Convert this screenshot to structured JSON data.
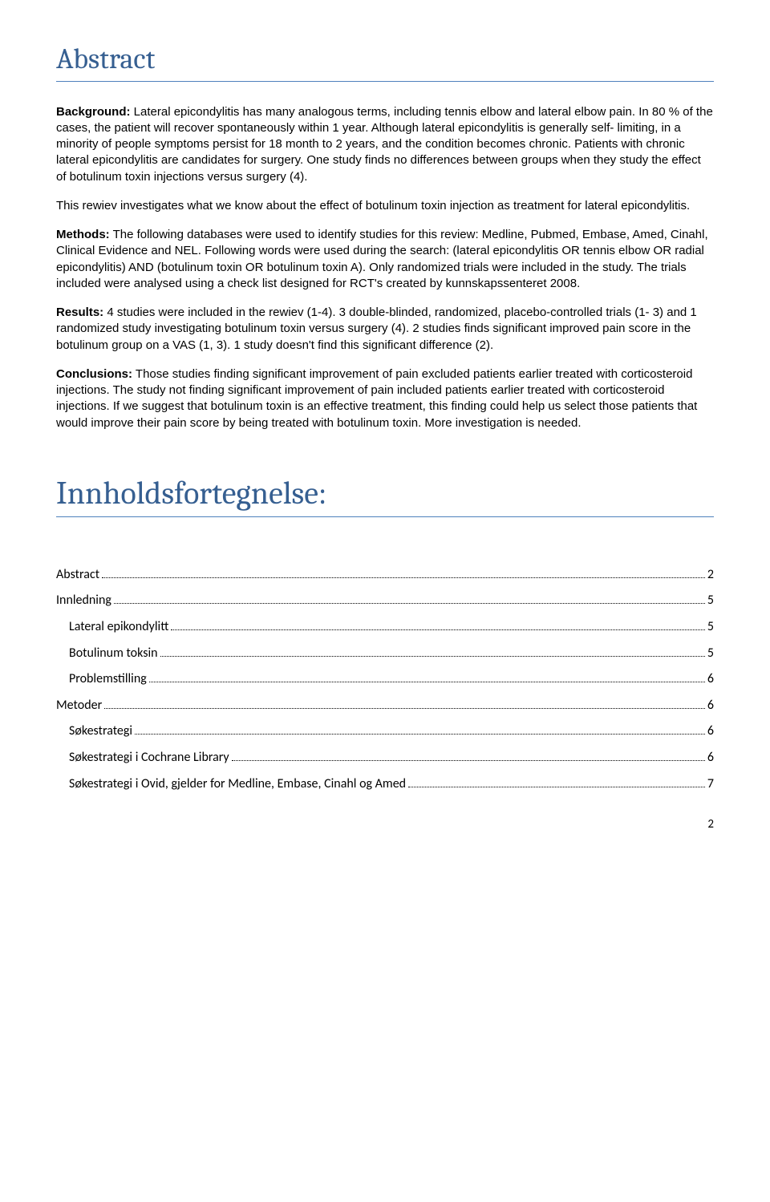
{
  "headings": {
    "abstract": "Abstract",
    "toc_heading": "Innholdsfortegnelse:"
  },
  "paragraphs": {
    "p1_label": "Background:",
    "p1": " Lateral epicondylitis has many analogous terms, including tennis elbow and lateral elbow pain. In 80 % of the cases, the patient will recover spontaneously within 1 year. Although lateral epicondylitis is generally self- limiting, in a minority of people symptoms persist for 18 month to 2 years, and the condition becomes chronic. Patients with chronic lateral epicondylitis are candidates for surgery. One study finds no differences between groups when they study the effect of botulinum toxin injections versus surgery (4).",
    "p2": "This rewiev investigates what we know about the effect of botulinum toxin injection as treatment for lateral epicondylitis.",
    "p3_label": "Methods:",
    "p3": " The following databases were used to identify studies for this review: Medline, Pubmed, Embase, Amed, Cinahl, Clinical Evidence and NEL. Following words were used during the search: (lateral epicondylitis OR tennis elbow OR radial epicondylitis) AND (botulinum toxin OR botulinum toxin A). Only randomized trials were included in the study. The trials included were analysed using a check list designed for RCT's created by kunnskapssenteret 2008.",
    "p4_label": "Results:",
    "p4": " 4 studies were included in the rewiev (1-4). 3 double-blinded, randomized, placebo-controlled trials (1- 3) and 1 randomized study investigating botulinum toxin versus surgery (4). 2 studies finds significant improved pain score in the botulinum group on a VAS (1, 3). 1 study doesn't find this significant difference (2).",
    "p5_label": "Conclusions:",
    "p5": "  Those studies finding significant improvement of pain excluded patients earlier treated with corticosteroid injections. The study not finding significant improvement of pain included patients earlier treated with corticosteroid injections. If we suggest that botulinum toxin is an effective treatment, this finding could help us select those patients that would improve their pain score by being treated with botulinum toxin. More investigation is needed."
  },
  "toc": [
    {
      "label": "Abstract",
      "page": "2",
      "indent": false
    },
    {
      "label": "Innledning",
      "page": "5",
      "indent": false
    },
    {
      "label": "Lateral epikondylitt",
      "page": "5",
      "indent": true
    },
    {
      "label": "Botulinum toksin",
      "page": "5",
      "indent": true
    },
    {
      "label": "Problemstilling",
      "page": "6",
      "indent": true
    },
    {
      "label": "Metoder",
      "page": "6",
      "indent": false
    },
    {
      "label": "Søkestrategi",
      "page": "6",
      "indent": true
    },
    {
      "label": "Søkestrategi i Cochrane Library",
      "page": "6",
      "indent": true
    },
    {
      "label": "Søkestrategi i Ovid, gjelder for Medline, Embase, Cinahl og Amed",
      "page": "7",
      "indent": true
    }
  ],
  "page_number": "2",
  "style": {
    "heading_color": "#365f91",
    "heading_border": "#4f81bd",
    "body_font": "Arial",
    "heading_font": "Cambria",
    "toc_font": "Calibri",
    "background": "#ffffff",
    "text_color": "#000000"
  }
}
